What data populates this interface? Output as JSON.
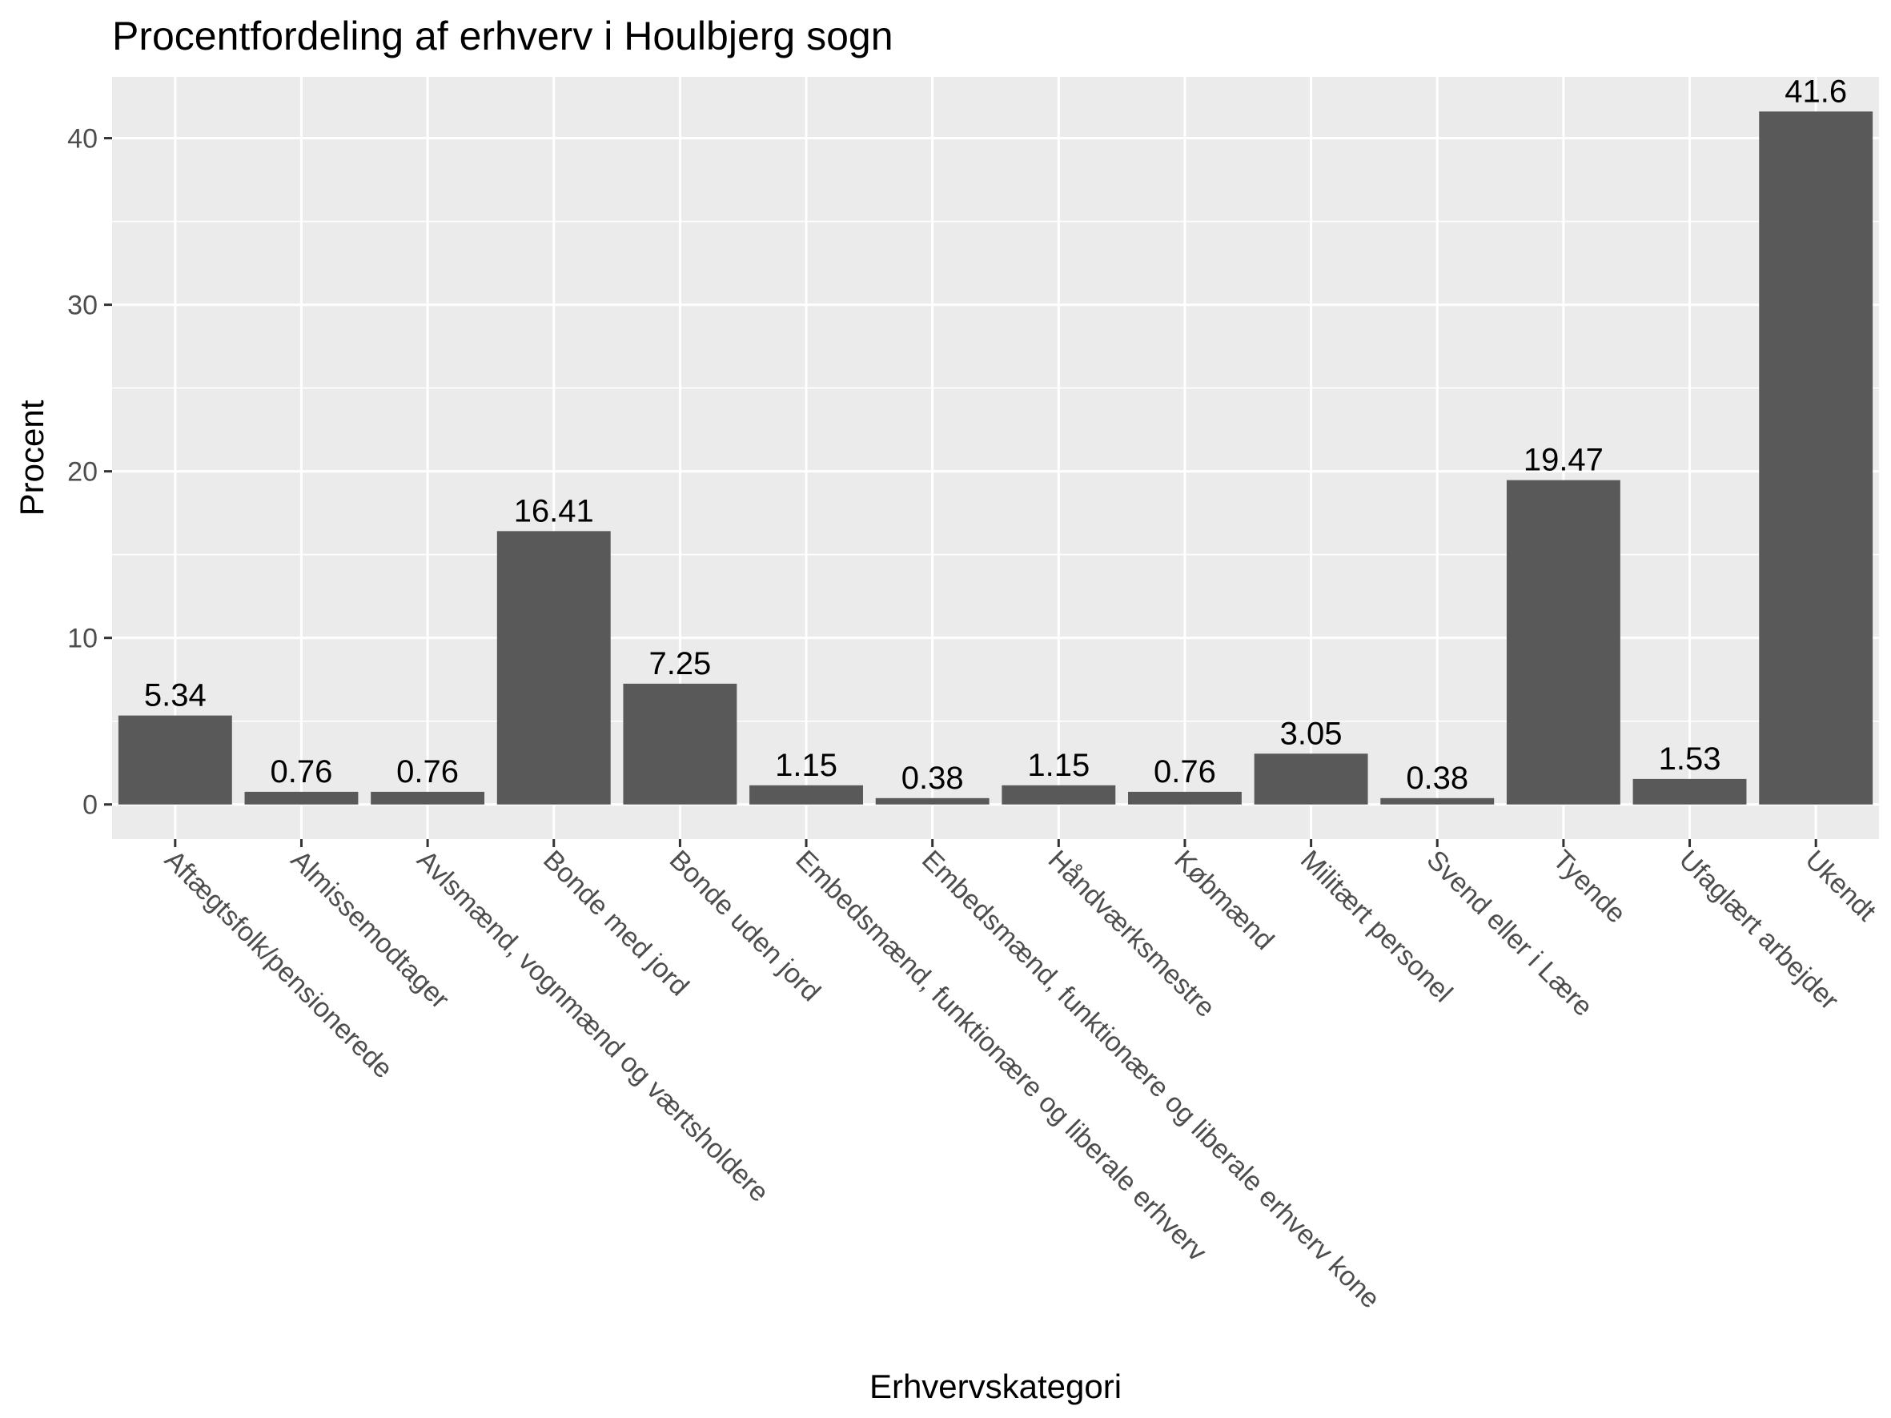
{
  "chart_data": {
    "type": "bar",
    "title": "Procentfordeling af erhverv i Houlbjerg sogn",
    "xlabel": "Erhvervskategori",
    "ylabel": "Procent",
    "categories": [
      "Aftægtsfolk/pensionerede",
      "Almissemodtager",
      "Avlsmænd, vognmænd og værtsholdere",
      "Bonde med jord",
      "Bonde uden jord",
      "Embedsmænd, funktionære og liberale erhverv",
      "Embedsmænd, funktionære og liberale erhverv kone",
      "Håndværksmestre",
      "Købmænd",
      "Militært personel",
      "Svend eller i Lære",
      "Tyende",
      "Ufaglært arbejder",
      "Ukendt"
    ],
    "values": [
      5.34,
      0.76,
      0.76,
      16.41,
      7.25,
      1.15,
      0.38,
      1.15,
      0.76,
      3.05,
      0.38,
      19.47,
      1.53,
      41.6
    ],
    "value_labels": [
      "5.34",
      "0.76",
      "0.76",
      "16.41",
      "7.25",
      "1.15",
      "0.38",
      "1.15",
      "0.76",
      "3.05",
      "0.38",
      "19.47",
      "1.53",
      "41.6"
    ],
    "yticks": [
      0,
      10,
      20,
      30,
      40
    ],
    "ylim": [
      -2.08,
      43.68
    ],
    "grid": true,
    "colors": {
      "bar": "#595959",
      "panel": "#ebebeb",
      "grid": "#ffffff"
    }
  }
}
